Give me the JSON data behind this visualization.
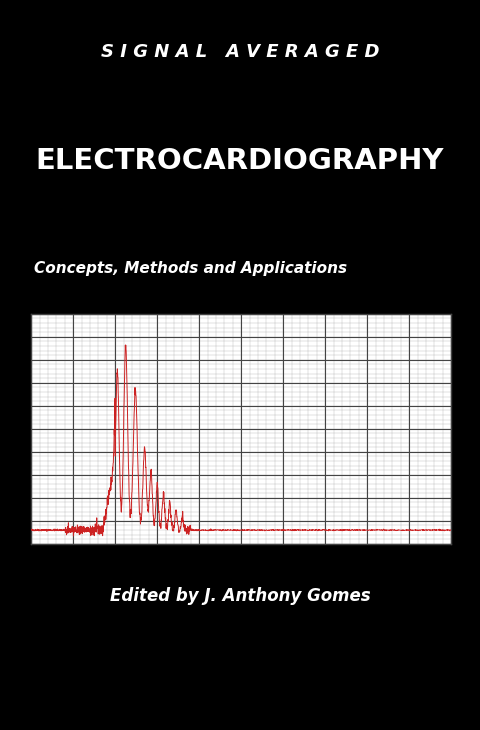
{
  "bg_color": "#000000",
  "top_band_color": "#f08888",
  "red_band_color": "#cc3333",
  "bottom_band_color": "#cc3333",
  "title_top_spaced": "S I G N A L   A V E R A G E D",
  "title_main": "ELECTROCARDIOGRAPHY",
  "subtitle": "Concepts, Methods and Applications",
  "author": "Edited by J. Anthony Gomes",
  "ecg_color": "#cc2222",
  "grid_minor_color": "#aaaaaa",
  "grid_major_color": "#444444",
  "white_color": "#ffffff",
  "chart_bg": "#ffffff"
}
